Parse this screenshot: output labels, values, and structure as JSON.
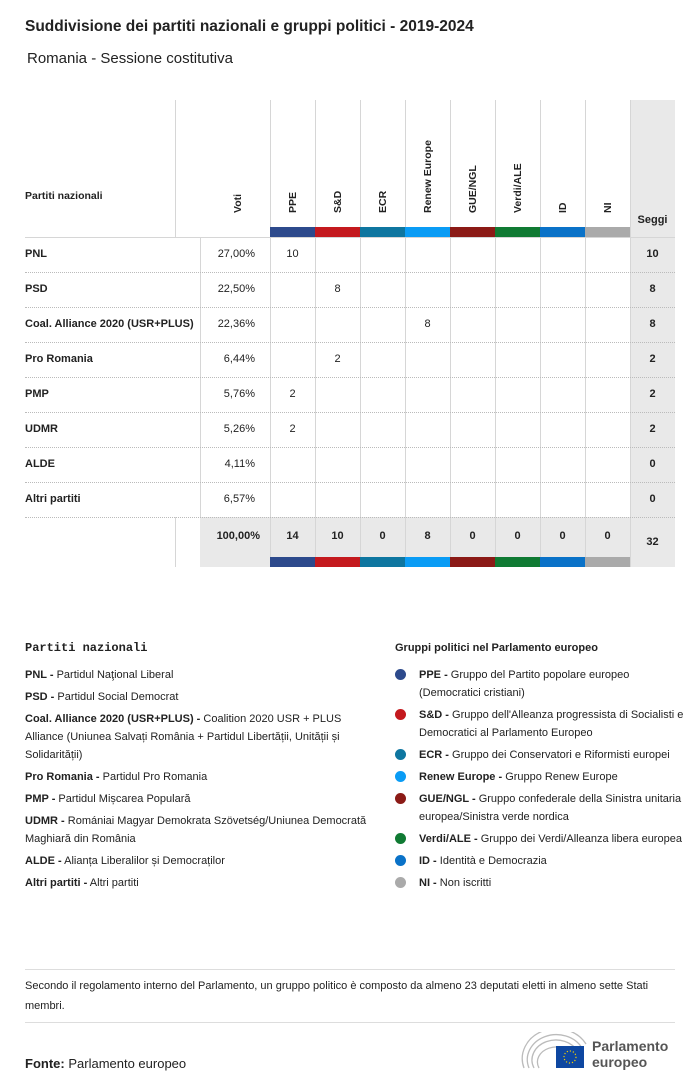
{
  "title": "Suddivisione dei partiti nazionali e gruppi politici - 2019-2024",
  "subtitle": "Romania - Sessione costitutiva",
  "chart_data": {
    "type": "table",
    "header": {
      "party": "Partiti nazionali",
      "votes": "Voti",
      "seats": "Seggi"
    },
    "groups": [
      {
        "name": "PPE",
        "color": "#2d4a8c"
      },
      {
        "name": "S&D",
        "color": "#c4191e"
      },
      {
        "name": "ECR",
        "color": "#0e76a0"
      },
      {
        "name": "Renew Europe",
        "color": "#0a9cf5"
      },
      {
        "name": "GUE/NGL",
        "color": "#8b1a16"
      },
      {
        "name": "Verdi/ALE",
        "color": "#107a33"
      },
      {
        "name": "ID",
        "color": "#0a72c8"
      },
      {
        "name": "NI",
        "color": "#aaaaaa"
      }
    ],
    "rows": [
      {
        "party": "PNL",
        "votes": "27,00%",
        "seats_by_group": [
          10,
          null,
          null,
          null,
          null,
          null,
          null,
          null
        ],
        "seats": "10"
      },
      {
        "party": "PSD",
        "votes": "22,50%",
        "seats_by_group": [
          null,
          8,
          null,
          null,
          null,
          null,
          null,
          null
        ],
        "seats": "8"
      },
      {
        "party": "Coal. Alliance 2020 (USR+PLUS)",
        "votes": "22,36%",
        "seats_by_group": [
          null,
          null,
          null,
          8,
          null,
          null,
          null,
          null
        ],
        "seats": "8"
      },
      {
        "party": "Pro Romania",
        "votes": "6,44%",
        "seats_by_group": [
          null,
          2,
          null,
          null,
          null,
          null,
          null,
          null
        ],
        "seats": "2"
      },
      {
        "party": "PMP",
        "votes": "5,76%",
        "seats_by_group": [
          2,
          null,
          null,
          null,
          null,
          null,
          null,
          null
        ],
        "seats": "2"
      },
      {
        "party": "UDMR",
        "votes": "5,26%",
        "seats_by_group": [
          2,
          null,
          null,
          null,
          null,
          null,
          null,
          null
        ],
        "seats": "2"
      },
      {
        "party": "ALDE",
        "votes": "4,11%",
        "seats_by_group": [
          null,
          null,
          null,
          null,
          null,
          null,
          null,
          null
        ],
        "seats": "0"
      },
      {
        "party": "Altri partiti",
        "votes": "6,57%",
        "seats_by_group": [
          null,
          null,
          null,
          null,
          null,
          null,
          null,
          null
        ],
        "seats": "0"
      }
    ],
    "totals": {
      "votes": "100,00%",
      "groups": [
        "14",
        "10",
        "0",
        "8",
        "0",
        "0",
        "0",
        "0"
      ],
      "seats": "32"
    }
  },
  "legend_parties": {
    "title": "Partiti nazionali",
    "items": [
      {
        "abbr": "PNL -",
        "name": "Partidul Naţional Liberal"
      },
      {
        "abbr": "PSD -",
        "name": "Partidul Social Democrat"
      },
      {
        "abbr": "Coal. Alliance 2020 (USR+PLUS) -",
        "name": "Coalition 2020 USR + PLUS Alliance (Uniunea Salvați România + Partidul Libertății, Unității și Solidarității)"
      },
      {
        "abbr": "Pro Romania -",
        "name": "Partidul Pro Romania"
      },
      {
        "abbr": "PMP -",
        "name": "Partidul Mișcarea Populară"
      },
      {
        "abbr": "UDMR -",
        "name": "Romániai Magyar Demokrata Szövetség/Uniunea Democrată Maghiară din România"
      },
      {
        "abbr": "ALDE -",
        "name": "Alianța Liberalilor și Democraților"
      },
      {
        "abbr": "Altri partiti -",
        "name": "Altri partiti"
      }
    ]
  },
  "legend_groups": {
    "title": "Gruppi politici nel Parlamento europeo",
    "items": [
      {
        "abbr": "PPE -",
        "name": "Gruppo del Partito popolare europeo (Democratici cristiani)"
      },
      {
        "abbr": "S&D -",
        "name": "Gruppo dell'Alleanza progressista di Socialisti e Democratici al Parlamento Europeo"
      },
      {
        "abbr": "ECR -",
        "name": "Gruppo dei Conservatori e Riformisti europei"
      },
      {
        "abbr": "Renew Europe -",
        "name": "Gruppo Renew Europe"
      },
      {
        "abbr": "GUE/NGL -",
        "name": "Gruppo confederale della Sinistra unitaria europea/Sinistra verde nordica"
      },
      {
        "abbr": "Verdi/ALE -",
        "name": "Gruppo dei Verdi/Alleanza libera europea"
      },
      {
        "abbr": "ID -",
        "name": "Identità e Democrazia"
      },
      {
        "abbr": "NI -",
        "name": "Non iscritti"
      }
    ]
  },
  "note": "Secondo il regolamento interno del Parlamento, un gruppo politico è composto da almeno 23 deputati eletti in almeno sette Stati membri.",
  "source": {
    "label": "Fonte:",
    "value": "Parlamento europeo"
  },
  "logo": {
    "text1": "Parlamento",
    "text2": "europeo"
  }
}
